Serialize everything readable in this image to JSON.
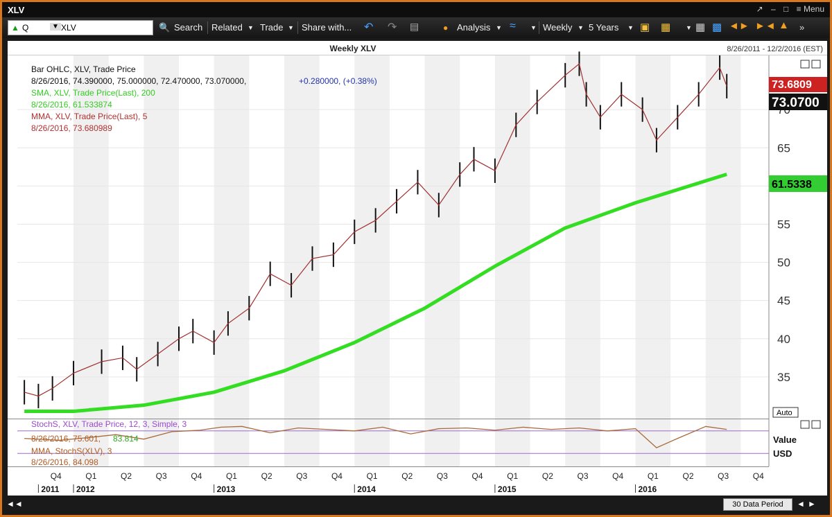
{
  "window": {
    "title": "XLV",
    "controls": [
      "↗",
      "–",
      "□",
      "≡ Menu"
    ]
  },
  "toolbar": {
    "security": {
      "q_label": "Q",
      "value": "XLV"
    },
    "search": "Search",
    "related": "Related",
    "trade": "Trade",
    "share": "Share with...",
    "analysis": "Analysis",
    "interval": "Weekly",
    "range": "5 Years"
  },
  "chart": {
    "title": "Weekly XLV",
    "date_range": "8/26/2011 - 12/2/2016 (EST)",
    "legend": {
      "line1": "Bar OHLC, XLV, Trade Price",
      "line2a": "8/26/2016, 74.390000, 75.000000, 72.470000, 73.070000,",
      "line2b": "+0.280000, (+0.38%)",
      "sma_name": "SMA, XLV, Trade Price(Last),  200",
      "sma_val": "8/26/2016, 61.533874",
      "mma_name": "MMA, XLV, Trade Price(Last),  5",
      "mma_val": "8/26/2016, 73.680989"
    },
    "tags": {
      "mma": "73.6809",
      "last": "73.0700",
      "sma": "61.5338"
    },
    "auto_label": "Auto",
    "stoch": {
      "name": "StochS, XLV, Trade Price,  12,  3,  Simple,  3",
      "val_a": "8/26/2016, 75.601,",
      "val_b": "83.814",
      "mma_name": "MMA, StochS(XLV),  3",
      "mma_val": "8/26/2016, 84.098",
      "value_label": "Value",
      "usd_label": "USD"
    },
    "period_button": "30 Data Period"
  },
  "colors": {
    "sma": "#33dd22",
    "mma": "#a03030",
    "stoch": "#a86a3a",
    "stoch_line": "#9a6ad0",
    "band": "#f0f0f0",
    "sma_tag": "#33cc33",
    "mma_tag": "#cc2222"
  },
  "chart_data": {
    "type": "line",
    "x_quarters": [
      "Q4",
      "Q1",
      "Q2",
      "Q3",
      "Q4",
      "Q1",
      "Q2",
      "Q3",
      "Q4",
      "Q1",
      "Q2",
      "Q3",
      "Q4",
      "Q1",
      "Q2",
      "Q3",
      "Q4",
      "Q1",
      "Q2",
      "Q3",
      "Q4"
    ],
    "x_years": [
      "2011",
      "2012",
      "2013",
      "2014",
      "2015",
      "2016"
    ],
    "y_ticks": [
      35,
      40,
      45,
      50,
      55,
      60,
      65,
      70
    ],
    "ylim": [
      30,
      77
    ],
    "series": [
      {
        "name": "Bar OHLC, XLV, Trade Price",
        "x": [
          2011.65,
          2011.75,
          2011.85,
          2012.0,
          2012.2,
          2012.35,
          2012.45,
          2012.6,
          2012.75,
          2012.85,
          2013.0,
          2013.1,
          2013.25,
          2013.4,
          2013.55,
          2013.7,
          2013.85,
          2014.0,
          2014.15,
          2014.3,
          2014.45,
          2014.6,
          2014.75,
          2014.85,
          2015.0,
          2015.15,
          2015.3,
          2015.5,
          2015.6,
          2015.65,
          2015.75,
          2015.9,
          2016.05,
          2016.15,
          2016.3,
          2016.45,
          2016.6,
          2016.65
        ],
        "values": [
          33.0,
          32.5,
          33.5,
          35.5,
          37.0,
          37.5,
          36.0,
          38.0,
          40.0,
          41.0,
          39.5,
          42.0,
          44.0,
          48.5,
          47.0,
          50.5,
          51.0,
          54.0,
          55.5,
          58.0,
          60.5,
          57.5,
          61.5,
          63.5,
          62.0,
          68.0,
          71.0,
          74.5,
          76.0,
          72.0,
          69.0,
          72.0,
          70.0,
          66.0,
          69.0,
          72.0,
          75.5,
          73.07
        ]
      },
      {
        "name": "SMA, XLV, Trade Price(Last),  200",
        "x": [
          2011.65,
          2012.0,
          2012.5,
          2013.0,
          2013.5,
          2014.0,
          2014.5,
          2015.0,
          2015.5,
          2016.0,
          2016.65
        ],
        "values": [
          30.5,
          30.5,
          31.3,
          33.0,
          35.8,
          39.5,
          44.0,
          49.5,
          54.5,
          57.8,
          61.53
        ]
      }
    ],
    "stochastic": {
      "ylim": [
        0,
        100
      ],
      "x": [
        2011.65,
        2011.9,
        2012.1,
        2012.3,
        2012.5,
        2012.7,
        2012.9,
        2013.05,
        2013.2,
        2013.4,
        2013.6,
        2013.8,
        2014.0,
        2014.2,
        2014.4,
        2014.6,
        2014.8,
        2015.0,
        2015.2,
        2015.4,
        2015.6,
        2015.8,
        2016.0,
        2016.15,
        2016.3,
        2016.5,
        2016.65
      ],
      "values": [
        60,
        55,
        62,
        70,
        58,
        78,
        82,
        90,
        92,
        75,
        88,
        84,
        80,
        90,
        72,
        86,
        88,
        82,
        90,
        84,
        88,
        80,
        86,
        35,
        60,
        92,
        84
      ]
    }
  }
}
